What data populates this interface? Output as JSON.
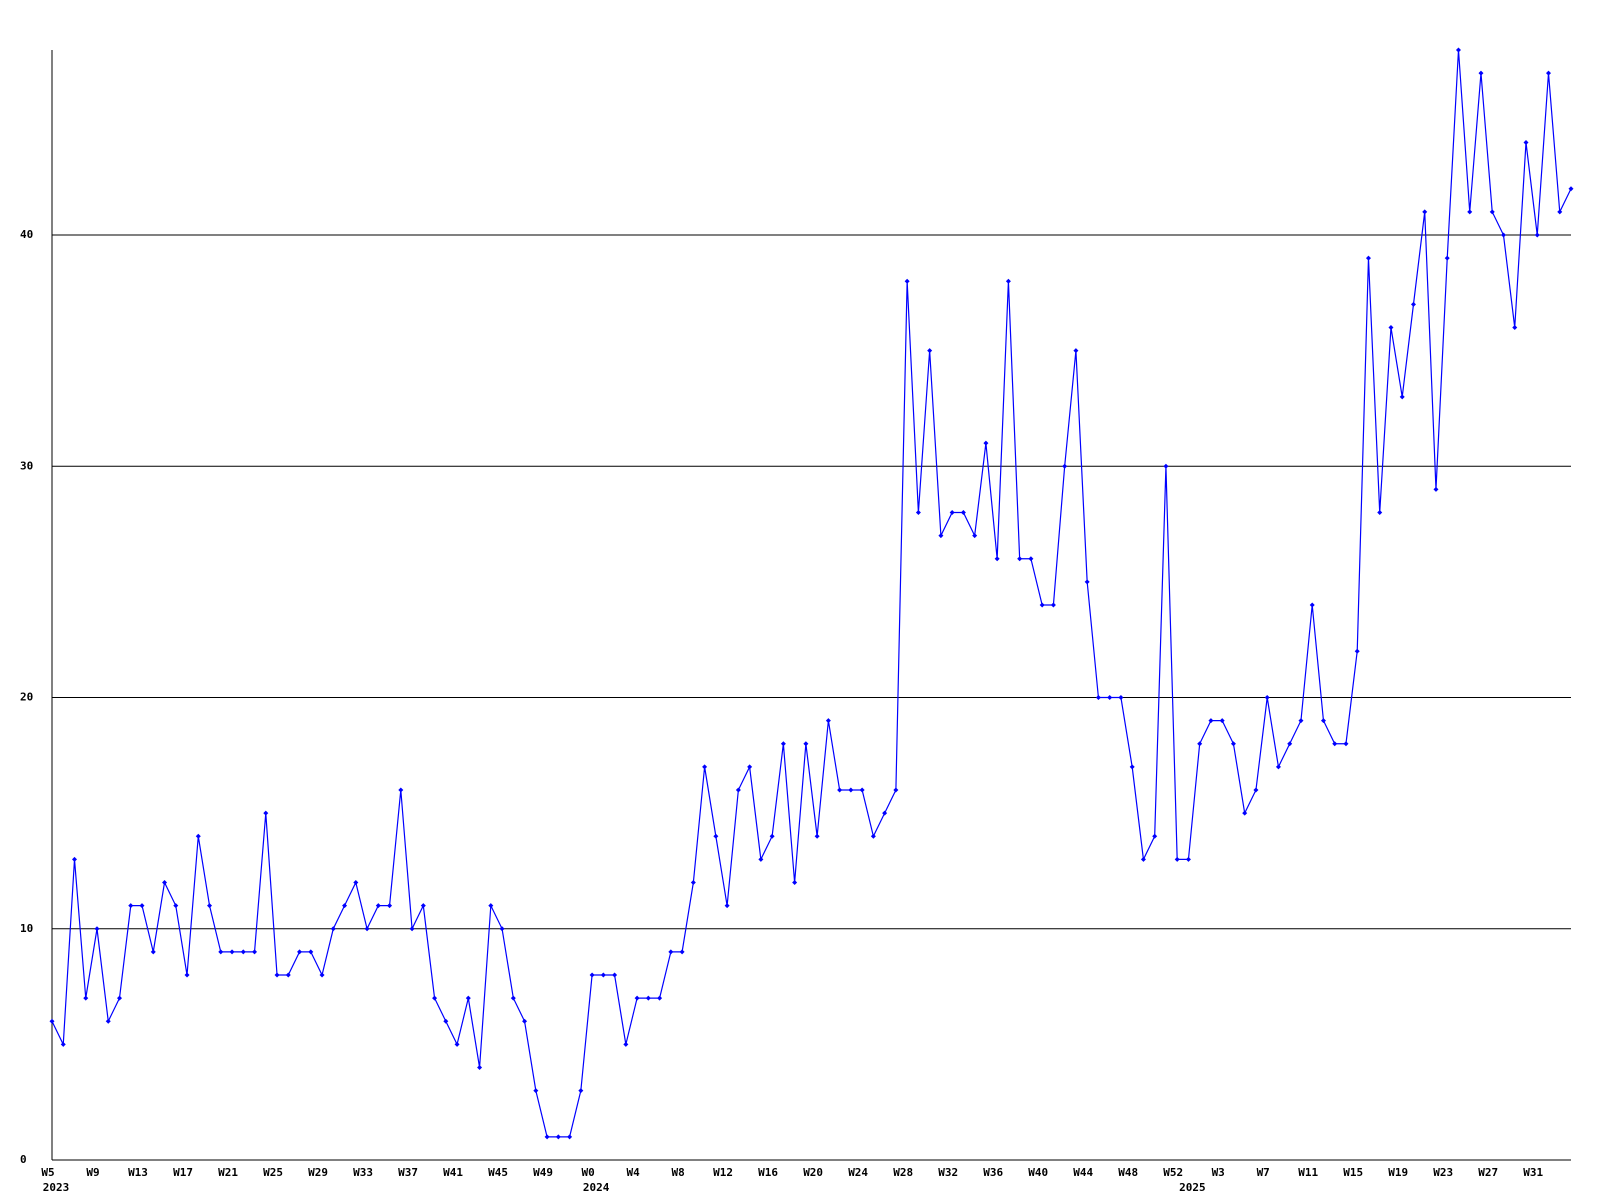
{
  "chart_data": {
    "type": "line",
    "categories": [
      "W5",
      null,
      null,
      null,
      "W9",
      null,
      null,
      null,
      "W13",
      null,
      null,
      null,
      "W17",
      null,
      null,
      null,
      "W21",
      null,
      null,
      null,
      "W25",
      null,
      null,
      null,
      "W29",
      null,
      null,
      null,
      "W33",
      null,
      null,
      null,
      "W37",
      null,
      null,
      null,
      "W41",
      null,
      null,
      null,
      "W45",
      null,
      null,
      null,
      "W49",
      null,
      null,
      null,
      "W0",
      null,
      null,
      null,
      "W4",
      null,
      null,
      null,
      "W8",
      null,
      null,
      null,
      "W12",
      null,
      null,
      null,
      "W16",
      null,
      null,
      null,
      "W20",
      null,
      null,
      null,
      "W24",
      null,
      null,
      null,
      "W28",
      null,
      null,
      null,
      "W32",
      null,
      null,
      null,
      "W36",
      null,
      null,
      null,
      "W40",
      null,
      null,
      null,
      "W44",
      null,
      null,
      null,
      "W48",
      null,
      null,
      null,
      "W52",
      null,
      null,
      null,
      "W3",
      null,
      null,
      null,
      "W7",
      null,
      null,
      null,
      "W11",
      null,
      null,
      null,
      "W15",
      null,
      null,
      null,
      "W19",
      null,
      null,
      null,
      "W23",
      null,
      null,
      null,
      "W27",
      null,
      null,
      null,
      "W31",
      null,
      null,
      null
    ],
    "category_groups": [
      "2023",
      null,
      null,
      null,
      null,
      null,
      null,
      null,
      null,
      null,
      null,
      null,
      null,
      null,
      null,
      null,
      null,
      null,
      null,
      null,
      null,
      null,
      null,
      null,
      null,
      null,
      null,
      null,
      null,
      null,
      null,
      null,
      null,
      null,
      null,
      null,
      null,
      null,
      null,
      null,
      null,
      null,
      null,
      null,
      null,
      null,
      null,
      null,
      "2024",
      null,
      null,
      null,
      null,
      null,
      null,
      null,
      null,
      null,
      null,
      null,
      null,
      null,
      null,
      null,
      null,
      null,
      null,
      null,
      null,
      null,
      null,
      null,
      null,
      null,
      null,
      null,
      null,
      null,
      null,
      null,
      null,
      null,
      null,
      null,
      null,
      null,
      null,
      null,
      null,
      null,
      null,
      null,
      null,
      null,
      null,
      null,
      null,
      null,
      null,
      null,
      null,
      "2025",
      null,
      null,
      null,
      null,
      null,
      null,
      null,
      null,
      null,
      null,
      null,
      null,
      null,
      null,
      null,
      null,
      null,
      null,
      null,
      null,
      null,
      null,
      null,
      null,
      null,
      null,
      null,
      null,
      null,
      null,
      null,
      null,
      null,
      null
    ],
    "series": [
      {
        "color": "#0000ff",
        "values": [
          6,
          5,
          13,
          7,
          10,
          6,
          7,
          11,
          11,
          9,
          12,
          11,
          8,
          14,
          11,
          9,
          9,
          9,
          9,
          15,
          8,
          8,
          9,
          9,
          8,
          10,
          11,
          12,
          10,
          11,
          11,
          16,
          10,
          11,
          7,
          6,
          5,
          7,
          4,
          11,
          10,
          7,
          6,
          3,
          1,
          1,
          1,
          3,
          8,
          8,
          8,
          5,
          7,
          7,
          7,
          9,
          9,
          12,
          17,
          14,
          11,
          16,
          17,
          13,
          14,
          18,
          12,
          18,
          14,
          19,
          16,
          16,
          16,
          14,
          15,
          16,
          38,
          28,
          35,
          27,
          28,
          28,
          27,
          31,
          26,
          38,
          26,
          26,
          24,
          24,
          30,
          35,
          25,
          20,
          20,
          20,
          17,
          13,
          14,
          30,
          13,
          13,
          18,
          19,
          19,
          18,
          15,
          16,
          20,
          17,
          18,
          19,
          24,
          19,
          18,
          18,
          22,
          39,
          28,
          36,
          33,
          37,
          41,
          29,
          39,
          48,
          41,
          47,
          41,
          40,
          36,
          44,
          40,
          47,
          41,
          42
        ]
      }
    ],
    "ylim": [
      0,
      48
    ],
    "yticks": [
      0,
      10,
      20,
      30,
      40
    ],
    "grid": true
  }
}
